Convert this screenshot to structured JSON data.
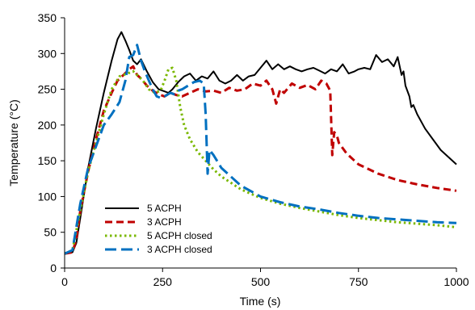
{
  "chart_data": {
    "type": "line",
    "title": "",
    "xlabel": "Time (s)",
    "ylabel": "Temperature  (°C)",
    "xlim": [
      0,
      1000
    ],
    "ylim": [
      0,
      350
    ],
    "xticks": [
      0,
      250,
      500,
      750,
      1000
    ],
    "yticks": [
      0,
      50,
      100,
      150,
      200,
      250,
      300,
      350
    ],
    "grid": false,
    "legend_position": "bottom-left",
    "series": [
      {
        "name": "5 ACPH",
        "color": "#000000",
        "dash": "solid",
        "x": [
          0,
          20,
          30,
          40,
          60,
          80,
          100,
          120,
          135,
          145,
          155,
          165,
          175,
          185,
          195,
          210,
          225,
          240,
          255,
          265,
          275,
          290,
          305,
          320,
          335,
          350,
          365,
          380,
          395,
          410,
          425,
          440,
          455,
          470,
          485,
          500,
          515,
          530,
          545,
          560,
          575,
          590,
          605,
          620,
          635,
          650,
          665,
          680,
          695,
          710,
          725,
          740,
          750,
          765,
          780,
          795,
          810,
          825,
          840,
          850,
          860,
          865,
          870,
          880,
          885,
          890,
          900,
          920,
          940,
          960,
          980,
          1000
        ],
        "y": [
          20,
          22,
          35,
          70,
          140,
          195,
          245,
          290,
          320,
          330,
          318,
          305,
          290,
          285,
          292,
          275,
          260,
          250,
          247,
          245,
          250,
          260,
          268,
          272,
          262,
          268,
          265,
          275,
          262,
          258,
          262,
          270,
          262,
          268,
          270,
          280,
          290,
          278,
          285,
          278,
          282,
          278,
          275,
          278,
          280,
          276,
          272,
          278,
          275,
          285,
          272,
          275,
          278,
          280,
          278,
          298,
          288,
          292,
          282,
          295,
          270,
          275,
          255,
          240,
          225,
          228,
          215,
          195,
          180,
          165,
          155,
          145
        ]
      },
      {
        "name": "3 ACPH",
        "color": "#c00000",
        "dash": "dash",
        "x": [
          0,
          20,
          30,
          40,
          60,
          80,
          100,
          120,
          135,
          150,
          165,
          175,
          185,
          195,
          210,
          225,
          240,
          255,
          270,
          285,
          300,
          320,
          340,
          360,
          380,
          400,
          420,
          440,
          460,
          480,
          500,
          515,
          530,
          540,
          550,
          560,
          580,
          600,
          620,
          640,
          655,
          668,
          678,
          683,
          688,
          695,
          700,
          720,
          750,
          800,
          850,
          900,
          950,
          1000
        ],
        "y": [
          20,
          22,
          40,
          80,
          135,
          180,
          220,
          245,
          262,
          270,
          278,
          282,
          270,
          265,
          255,
          248,
          243,
          240,
          245,
          242,
          240,
          245,
          250,
          247,
          248,
          245,
          252,
          248,
          250,
          258,
          255,
          262,
          250,
          230,
          250,
          245,
          258,
          252,
          256,
          250,
          262,
          258,
          248,
          158,
          190,
          185,
          175,
          160,
          145,
          132,
          123,
          117,
          112,
          108
        ]
      },
      {
        "name": "5 ACPH closed",
        "color": "#7ab800",
        "dash": "dot",
        "x": [
          0,
          20,
          40,
          60,
          80,
          100,
          120,
          140,
          160,
          175,
          185,
          200,
          215,
          230,
          245,
          255,
          265,
          275,
          285,
          295,
          305,
          320,
          340,
          360,
          380,
          400,
          450,
          500,
          550,
          600,
          650,
          700,
          750,
          800,
          850,
          900,
          950,
          1000
        ],
        "y": [
          20,
          25,
          80,
          135,
          175,
          215,
          250,
          268,
          272,
          275,
          270,
          262,
          250,
          245,
          248,
          262,
          278,
          280,
          262,
          225,
          200,
          180,
          162,
          150,
          138,
          128,
          110,
          98,
          90,
          84,
          79,
          74,
          70,
          67,
          64,
          62,
          60,
          57
        ]
      },
      {
        "name": "3 ACPH closed",
        "color": "#0070c0",
        "dash": "longdash",
        "x": [
          0,
          20,
          40,
          60,
          80,
          100,
          120,
          140,
          155,
          165,
          175,
          185,
          195,
          205,
          215,
          225,
          235,
          245,
          255,
          270,
          280,
          290,
          300,
          315,
          330,
          345,
          355,
          360,
          365,
          370,
          380,
          400,
          450,
          500,
          550,
          600,
          650,
          700,
          750,
          800,
          850,
          900,
          950,
          1000
        ],
        "y": [
          20,
          25,
          90,
          140,
          170,
          200,
          215,
          232,
          262,
          295,
          298,
          312,
          290,
          275,
          262,
          250,
          240,
          238,
          240,
          245,
          243,
          248,
          250,
          255,
          260,
          262,
          258,
          215,
          132,
          165,
          158,
          140,
          115,
          100,
          92,
          86,
          82,
          77,
          73,
          70,
          68,
          66,
          64,
          63
        ]
      }
    ]
  }
}
